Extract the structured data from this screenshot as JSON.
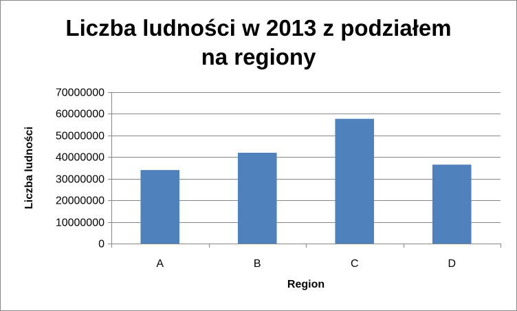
{
  "chart_data": {
    "type": "bar",
    "title_lines": [
      "Liczba ludności w 2013 z podziałem",
      "na regiony"
    ],
    "xlabel": "Region",
    "ylabel": "Liczba ludności",
    "categories": [
      "A",
      "B",
      "C",
      "D"
    ],
    "values": [
      34000000,
      42000000,
      57700000,
      36500000
    ],
    "ylim": [
      0,
      70000000
    ],
    "yticks": [
      0,
      10000000,
      20000000,
      30000000,
      40000000,
      50000000,
      60000000,
      70000000
    ],
    "ytick_labels": [
      "0",
      "10000000",
      "20000000",
      "30000000",
      "40000000",
      "50000000",
      "60000000",
      "70000000"
    ],
    "grid": "horizontal",
    "legend": "none",
    "bar_color": "#4f81bd",
    "grid_color": "#868686"
  }
}
